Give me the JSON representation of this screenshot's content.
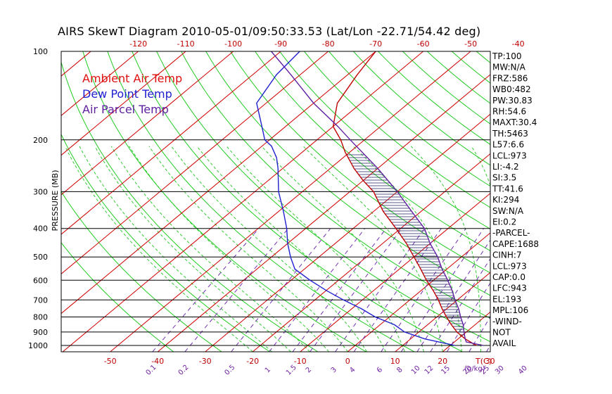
{
  "chart_data": {
    "type": "line",
    "title": "AIRS SkewT Diagram 2010-05-01/09:50:33.53 (Lat/Lon -22.71/54.42 deg)",
    "ylabel": "PRESSURE (MB)",
    "xlabel_unit": "T(C)",
    "mixing_ratio_unit": "(g/kg)",
    "ylim": [
      1050,
      100
    ],
    "y_scale": "log",
    "y_ticks": [
      1000,
      900,
      800,
      700,
      600,
      500,
      400,
      300,
      200,
      100
    ],
    "x_ticks_bottom": [
      -50,
      -40,
      -30,
      -20,
      -10,
      0,
      10,
      20,
      30
    ],
    "x_ticks_top": [
      -120,
      -110,
      -100,
      -90,
      -80,
      -70,
      -60,
      -50,
      -40
    ],
    "mixing_ratio_labels": [
      "0.1",
      "0.2",
      "0.5",
      "1",
      "1.5",
      "2",
      "3",
      "4",
      "6",
      "8",
      "10",
      "12",
      "15",
      "20",
      "25",
      "30",
      "40"
    ],
    "mixing_ratio_values": [
      0.1,
      0.2,
      0.5,
      1,
      1.5,
      2,
      3,
      4,
      6,
      8,
      10,
      12,
      15,
      20,
      25,
      30,
      40
    ],
    "legend": [
      {
        "name": "Ambient Air Temp",
        "color": "#e01010"
      },
      {
        "name": "Dew Point Temp",
        "color": "#2020d0"
      },
      {
        "name": "Air Parcel Temp",
        "color": "#6020a0"
      }
    ],
    "series": [
      {
        "name": "Ambient Air Temp",
        "color": "#c00000",
        "points": [
          [
            1000,
            25.5
          ],
          [
            950,
            21.5
          ],
          [
            900,
            18
          ],
          [
            850,
            15
          ],
          [
            800,
            12
          ],
          [
            750,
            9
          ],
          [
            700,
            6
          ],
          [
            650,
            2.5
          ],
          [
            600,
            -1.5
          ],
          [
            550,
            -5.5
          ],
          [
            500,
            -10
          ],
          [
            450,
            -15
          ],
          [
            400,
            -21
          ],
          [
            350,
            -28
          ],
          [
            300,
            -35
          ],
          [
            275,
            -40
          ],
          [
            250,
            -45
          ],
          [
            220,
            -51
          ],
          [
            200,
            -55
          ],
          [
            180,
            -60
          ],
          [
            150,
            -65
          ],
          [
            120,
            -68
          ],
          [
            100,
            -70
          ]
        ]
      },
      {
        "name": "Dew Point Temp",
        "color": "#2020d0",
        "points": [
          [
            1000,
            21
          ],
          [
            950,
            13
          ],
          [
            900,
            7
          ],
          [
            850,
            3
          ],
          [
            800,
            -3
          ],
          [
            750,
            -8
          ],
          [
            700,
            -14
          ],
          [
            650,
            -20
          ],
          [
            600,
            -26
          ],
          [
            550,
            -32
          ],
          [
            500,
            -36
          ],
          [
            450,
            -40
          ],
          [
            400,
            -44
          ],
          [
            350,
            -49
          ],
          [
            300,
            -55
          ],
          [
            250,
            -61
          ],
          [
            230,
            -64
          ],
          [
            210,
            -68
          ],
          [
            200,
            -71
          ],
          [
            180,
            -75
          ],
          [
            150,
            -82
          ],
          [
            120,
            -85
          ],
          [
            100,
            -86
          ]
        ]
      },
      {
        "name": "Air Parcel Temp",
        "color": "#6020a0",
        "points": [
          [
            1000,
            27
          ],
          [
            973,
            22.5
          ],
          [
            950,
            21.5
          ],
          [
            900,
            19.5
          ],
          [
            850,
            17.5
          ],
          [
            800,
            15
          ],
          [
            750,
            12.5
          ],
          [
            700,
            9.5
          ],
          [
            650,
            6.5
          ],
          [
            600,
            3
          ],
          [
            550,
            -1
          ],
          [
            500,
            -5
          ],
          [
            450,
            -10
          ],
          [
            400,
            -15
          ],
          [
            350,
            -22
          ],
          [
            300,
            -30
          ],
          [
            250,
            -40
          ],
          [
            200,
            -53
          ],
          [
            180,
            -59
          ],
          [
            150,
            -70
          ],
          [
            120,
            -82
          ],
          [
            100,
            -92
          ]
        ]
      }
    ],
    "indices": [
      "TP:100",
      "MW:N/A",
      "FRZ:586",
      "WB0:482",
      "PW:30.83",
      "RH:54.6",
      "MAXT:30.4",
      "TH:5463",
      "L57:6.6",
      "LCL:973",
      "LI:-4.2",
      "SI:3.5",
      "TT:41.6",
      "KI:294",
      "SW:N/A",
      "EI:0.2",
      "-PARCEL-",
      "CAPE:1688",
      "CINH:7",
      "LCL:973",
      "CAP:0.0",
      "LFC:943",
      "EL:193",
      "MPL:106",
      "-WIND-",
      "NOT",
      "AVAIL"
    ]
  }
}
